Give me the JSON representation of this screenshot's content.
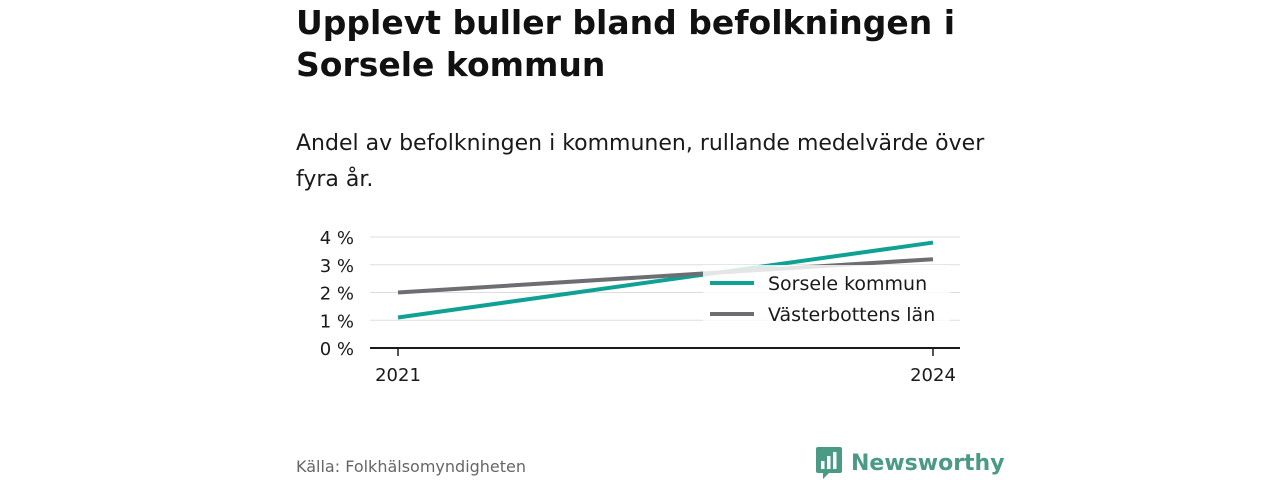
{
  "title": "Upplevt buller bland befolkningen i Sorsele kommun",
  "subtitle": "Andel av befolkningen i kommunen, rullande medelvärde över fyra år.",
  "source": "Källa: Folkhälsomyndigheten",
  "brand": {
    "name": "Newsworthy",
    "logo_icon": "bar-chart-speech-bubble-icon"
  },
  "colors": {
    "sorsele": "#0fa294",
    "vasterbotten": "#6d6e72",
    "brand": "#4a9a86",
    "grid": "#dddddd"
  },
  "chart_data": {
    "type": "line",
    "x": [
      "2021",
      "2024"
    ],
    "ylim": [
      0,
      4
    ],
    "yticks": [
      "0 %",
      "1 %",
      "2 %",
      "3 %",
      "4 %"
    ],
    "grid": true,
    "legend_position": "right",
    "series": [
      {
        "name": "Sorsele kommun",
        "values": [
          1.1,
          3.8
        ],
        "color": "#0fa294"
      },
      {
        "name": "Västerbottens län",
        "values": [
          2.0,
          3.2
        ],
        "color": "#6d6e72"
      }
    ]
  }
}
